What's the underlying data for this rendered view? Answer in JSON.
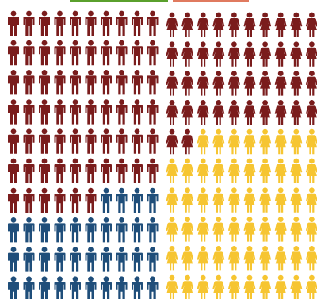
{
  "chart_data": {
    "type": "pictogram",
    "panels": [
      {
        "figure": "male",
        "rows": 10,
        "cols": 10,
        "series": [
          {
            "count": 66,
            "color": "#7a1c1c"
          },
          {
            "count": 34,
            "color": "#1f4e7a"
          }
        ]
      },
      {
        "figure": "female",
        "rows": 10,
        "cols": 10,
        "series": [
          {
            "count": 42,
            "color": "#7a1c1c"
          },
          {
            "count": 58,
            "color": "#f6c531"
          }
        ]
      }
    ],
    "decorations": {
      "top_bar_left_color": "#5aa02c",
      "top_bar_right_color": "#e07a5f"
    }
  }
}
